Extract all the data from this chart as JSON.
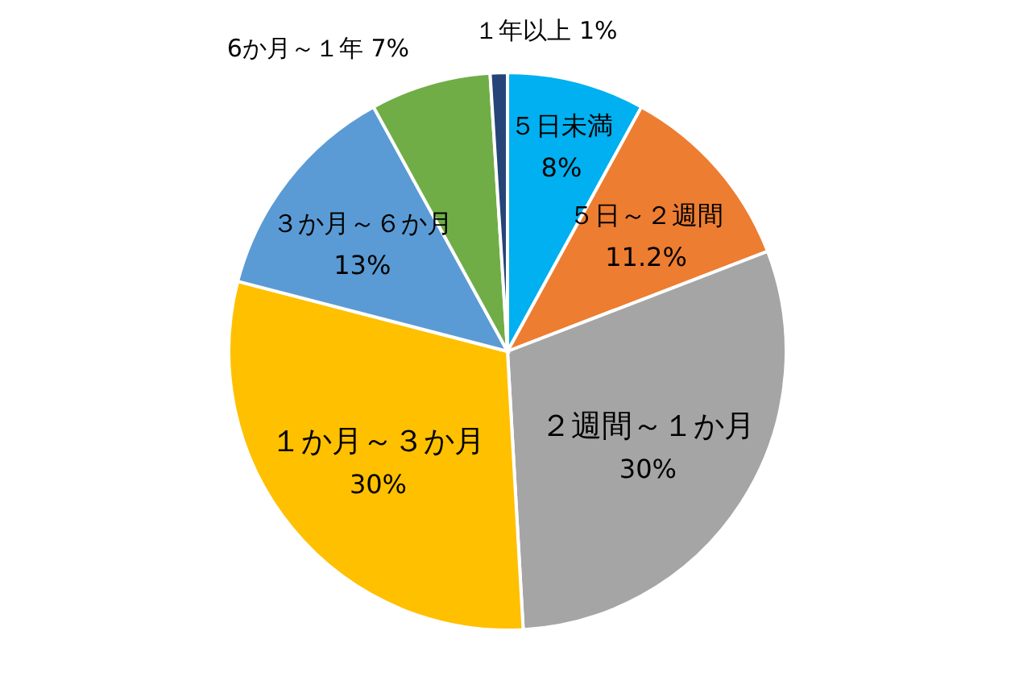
{
  "chart_data": {
    "type": "pie",
    "categories": [
      "５日未満",
      "５日～２週間",
      "２週間～１か月",
      "１か月～３か月",
      "３か月～６か月",
      "6か月～１年",
      "１年以上"
    ],
    "values": [
      8,
      11.2,
      30,
      30,
      13,
      7,
      1
    ],
    "value_labels": [
      "8%",
      "11.2%",
      "30%",
      "30%",
      "13%",
      "7%",
      "1%"
    ],
    "colors": [
      "#00b0f0",
      "#ed7d31",
      "#a5a5a5",
      "#ffc000",
      "#5b9bd5",
      "#70ad47",
      "#264478"
    ]
  }
}
